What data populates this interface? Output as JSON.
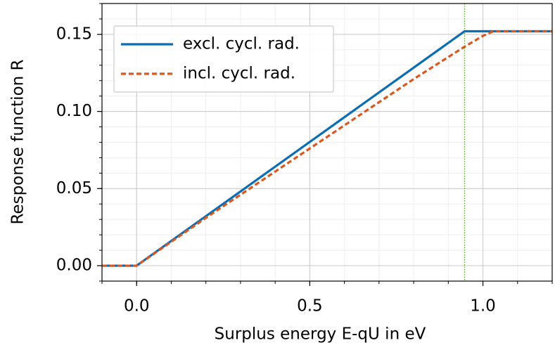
{
  "chart_data": {
    "type": "line",
    "x_label": "Surplus energy E-qU in eV",
    "y_label": "Response function R",
    "series": [
      {
        "name": "excl. cycl. rad.",
        "color": "#0b6db4",
        "dash": "solid",
        "x": [
          -0.1,
          0,
          0.947,
          1.2
        ],
        "values": [
          0,
          0,
          0.152,
          0.152
        ]
      },
      {
        "name": "incl. cycl. rad.",
        "color": "#d9581f",
        "dash": "dashed",
        "x": [
          -0.1,
          0,
          0.2,
          0.4,
          0.6,
          0.8,
          0.947,
          1.0,
          1.03,
          1.2
        ],
        "values": [
          0,
          0,
          0.031,
          0.061,
          0.091,
          0.121,
          0.142,
          0.149,
          0.152,
          0.152
        ]
      }
    ],
    "vline": {
      "x": 0.947,
      "color": "#4caf1a"
    },
    "xlim": [
      -0.1,
      1.2
    ],
    "ylim": [
      -0.01,
      0.17
    ],
    "xticks": [
      {
        "value": 0,
        "label": "0.0"
      },
      {
        "value": 0.5,
        "label": "0.5"
      },
      {
        "value": 1,
        "label": "1.0"
      }
    ],
    "yticks": [
      {
        "value": 0,
        "label": "0.00"
      },
      0.05,
      {
        "value": 0.1,
        "label": "0.10"
      },
      0.15
    ],
    "x_minor_step": 0.1,
    "y_minor_step": 0.01,
    "grid": true,
    "legend": "upper-left"
  }
}
